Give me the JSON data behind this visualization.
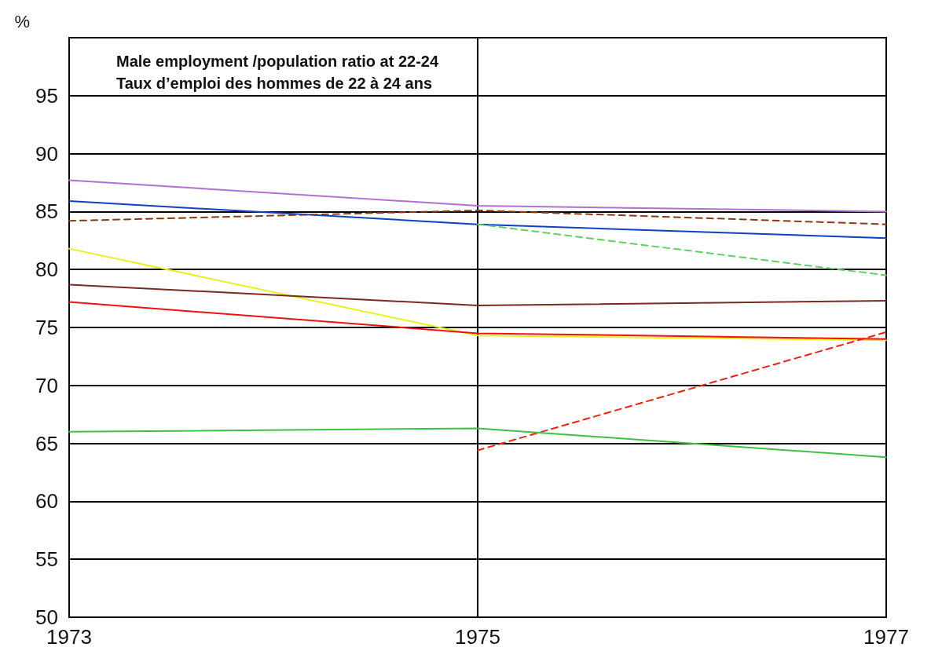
{
  "chart_data": {
    "type": "line",
    "title": "Male employment /population ratio at 22-24\nTaux d’emploi des hommes de 22 à 24 ans",
    "ylabel": "%",
    "x": [
      1973,
      1975,
      1977
    ],
    "xlim": [
      1973,
      1977
    ],
    "xticks": [
      1973,
      1975,
      1977
    ],
    "ylim": [
      50,
      100
    ],
    "yticks": [
      50,
      55,
      60,
      65,
      70,
      75,
      80,
      85,
      90,
      95
    ],
    "grid": true,
    "marker": "none",
    "line_style": "solid",
    "series": [
      {
        "color": "#b070d0",
        "values": [
          87.7,
          85.5,
          85.0
        ]
      },
      {
        "color": "#1040c0",
        "values": [
          85.9,
          83.9,
          82.7
        ]
      },
      {
        "color": "#8b3a10",
        "values": [
          84.2,
          85.1,
          83.9
        ],
        "line_style": "dashed"
      },
      {
        "color": "#60d060",
        "values": [
          null,
          83.9,
          79.5
        ],
        "line_style": "dashed"
      },
      {
        "color": "#e8f020",
        "values": [
          81.8,
          74.3,
          73.9
        ]
      },
      {
        "color": "#7a2a20",
        "values": [
          78.7,
          76.9,
          77.3
        ]
      },
      {
        "color": "#f01010",
        "values": [
          77.2,
          74.5,
          74.0
        ]
      },
      {
        "color": "#f02010",
        "values": [
          null,
          64.4,
          74.6
        ],
        "line_style": "dashed"
      },
      {
        "color": "#40c040",
        "values": [
          66.0,
          66.3,
          63.8
        ]
      }
    ]
  }
}
